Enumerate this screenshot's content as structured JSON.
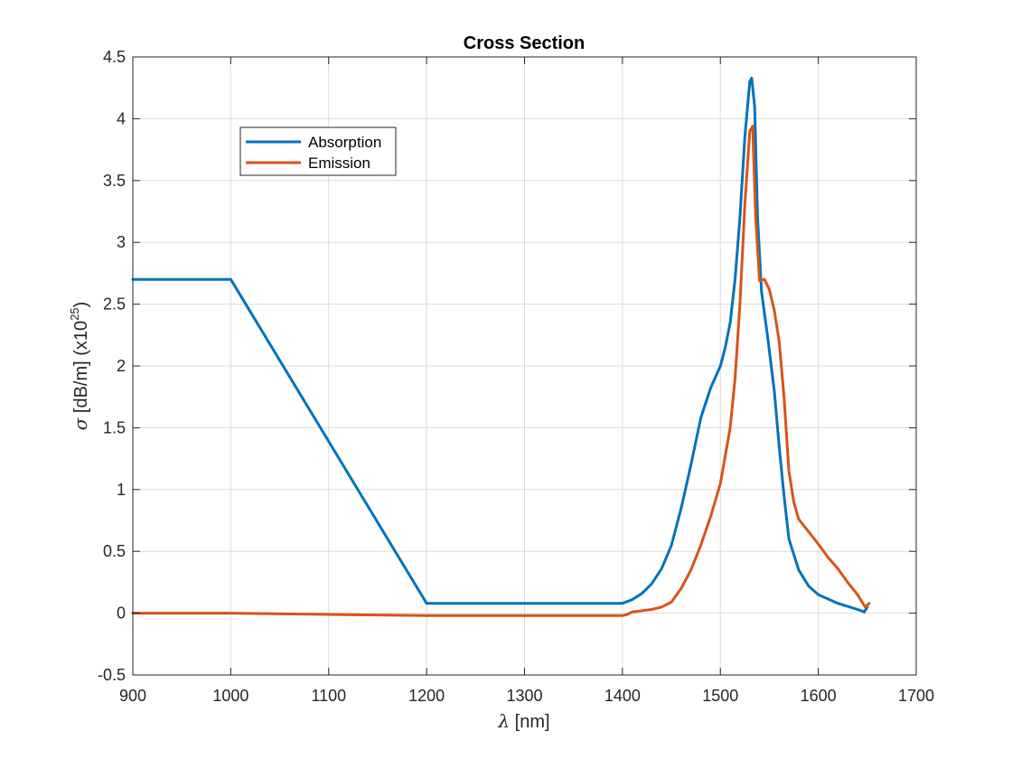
{
  "chart_data": {
    "type": "line",
    "title": "Cross Section",
    "xlabel_symbol": "λ",
    "xlabel_text": " [nm]",
    "ylabel_symbol": "σ",
    "ylabel_text": " [dB/m] (x10",
    "ylabel_exp": "25",
    "ylabel_close": ")",
    "xlim": [
      900,
      1700
    ],
    "ylim": [
      -0.5,
      4.5
    ],
    "xticks": [
      900,
      1000,
      1100,
      1200,
      1300,
      1400,
      1500,
      1600,
      1700
    ],
    "yticks": [
      -0.5,
      0,
      0.5,
      1,
      1.5,
      2,
      2.5,
      3,
      3.5,
      4,
      4.5
    ],
    "grid": true,
    "legend_position": "top-left",
    "series": [
      {
        "name": "Absorption",
        "color": "#0072BD",
        "x": [
          900,
          1000,
          1200,
          1300,
          1400,
          1410,
          1420,
          1430,
          1440,
          1450,
          1460,
          1470,
          1480,
          1490,
          1500,
          1505,
          1510,
          1515,
          1520,
          1525,
          1530,
          1532,
          1535,
          1538,
          1542,
          1548,
          1555,
          1560,
          1565,
          1570,
          1580,
          1590,
          1600,
          1620,
          1640,
          1647,
          1650
        ],
        "y": [
          2.7,
          2.7,
          0.08,
          0.08,
          0.08,
          0.11,
          0.16,
          0.24,
          0.36,
          0.55,
          0.85,
          1.2,
          1.58,
          1.82,
          2.0,
          2.15,
          2.35,
          2.7,
          3.2,
          3.85,
          4.3,
          4.33,
          4.1,
          3.2,
          2.6,
          2.25,
          1.8,
          1.35,
          0.95,
          0.6,
          0.35,
          0.22,
          0.15,
          0.08,
          0.03,
          0.01,
          0.05
        ]
      },
      {
        "name": "Emission",
        "color": "#D95319",
        "x": [
          900,
          1000,
          1100,
          1200,
          1300,
          1400,
          1405,
          1410,
          1420,
          1430,
          1440,
          1450,
          1460,
          1470,
          1480,
          1490,
          1500,
          1510,
          1515,
          1520,
          1525,
          1530,
          1533,
          1536,
          1540,
          1545,
          1550,
          1555,
          1560,
          1565,
          1570,
          1575,
          1580,
          1590,
          1600,
          1610,
          1620,
          1630,
          1640,
          1648,
          1652
        ],
        "y": [
          0.0,
          0.0,
          -0.01,
          -0.02,
          -0.02,
          -0.02,
          -0.01,
          0.01,
          0.02,
          0.03,
          0.05,
          0.09,
          0.2,
          0.35,
          0.55,
          0.78,
          1.05,
          1.5,
          1.9,
          2.5,
          3.3,
          3.9,
          3.94,
          3.2,
          2.69,
          2.7,
          2.62,
          2.45,
          2.2,
          1.75,
          1.15,
          0.9,
          0.76,
          0.66,
          0.56,
          0.45,
          0.36,
          0.25,
          0.15,
          0.05,
          0.08
        ]
      }
    ]
  }
}
